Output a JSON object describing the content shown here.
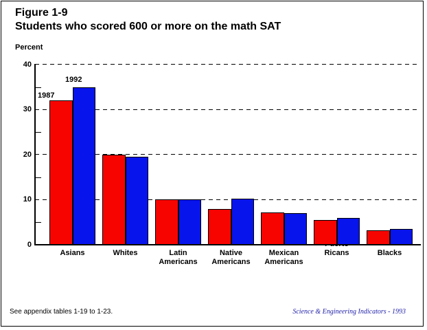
{
  "figure": {
    "number": "Figure 1-9",
    "title": "Students who scored 600 or more on the math SAT",
    "unit_label": "Percent"
  },
  "footnote": "See appendix tables 1-19 to 1-23.",
  "source_credit": "Science & Engineering Indicators - 1993",
  "colors": {
    "series_1987": "#f80400",
    "series_1992": "#0814ec",
    "grid": "#000000",
    "axis": "#000000",
    "source_text": "#2222aa"
  },
  "chart_data": {
    "type": "bar",
    "title": "Students who scored 600 or more on the math SAT",
    "xlabel": "",
    "ylabel": "Percent",
    "ylim": [
      0,
      40
    ],
    "yticks": [
      0,
      10,
      20,
      30,
      40
    ],
    "minor_ticks": [
      5,
      15,
      25,
      35
    ],
    "grid": "horizontal dashed lines at major ticks",
    "legend": "year labels drawn above first bar group",
    "categories": [
      "Asians",
      "Whites",
      "Latin Americans",
      "Native Americans",
      "Mexican Americans",
      "Puerto Ricans",
      "Blacks"
    ],
    "category_label_lines": [
      [
        "Asians"
      ],
      [
        "Whites"
      ],
      [
        "Latin",
        "Americans"
      ],
      [
        "Native",
        "Americans"
      ],
      [
        "Mexican",
        "Americans"
      ],
      [
        "Puerto",
        "Ricans"
      ],
      [
        "Blacks"
      ]
    ],
    "overlapped_label_index": 5,
    "series": [
      {
        "name": "1987",
        "color_key": "series_1987",
        "values": [
          32,
          20,
          10,
          8,
          7.2,
          5.5,
          3.2
        ]
      },
      {
        "name": "1992",
        "color_key": "series_1992",
        "values": [
          35,
          19.5,
          10,
          10.2,
          7,
          6,
          3.5
        ]
      }
    ]
  }
}
